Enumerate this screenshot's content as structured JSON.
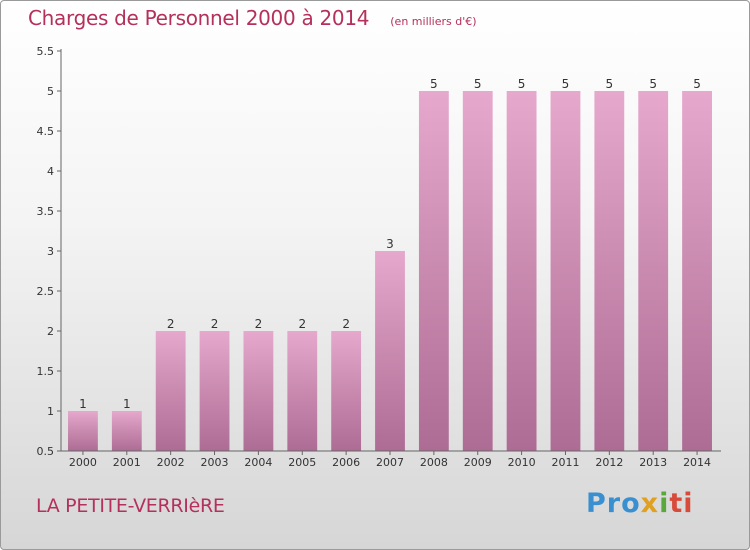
{
  "header": {
    "title": "Charges de Personnel 2000 à 2014",
    "subtitle": "(en milliers d'€)"
  },
  "footer": {
    "town": "LA PETITE-VERRIèRE",
    "brand": [
      "Pro",
      "x",
      "i",
      "ti"
    ]
  },
  "colors": {
    "title": "#b5305a",
    "bar_top": "#e6a8cc",
    "bar_bottom": "#ad6c94"
  },
  "chart_data": {
    "type": "bar",
    "title": "Charges de Personnel 2000 à 2014",
    "subtitle": "(en milliers d'€)",
    "categories": [
      "2000",
      "2001",
      "2002",
      "2003",
      "2004",
      "2005",
      "2006",
      "2007",
      "2008",
      "2009",
      "2010",
      "2011",
      "2012",
      "2013",
      "2014"
    ],
    "values": [
      1,
      1,
      2,
      2,
      2,
      2,
      2,
      3,
      5,
      5,
      5,
      5,
      5,
      5,
      5
    ],
    "data_labels": [
      "1",
      "1",
      "2",
      "2",
      "2",
      "2",
      "2",
      "3",
      "5",
      "5",
      "5",
      "5",
      "5",
      "5",
      "5"
    ],
    "ylim": [
      0.5,
      5.5
    ],
    "yticks": [
      "0.5",
      "1",
      "1.5",
      "2",
      "2.5",
      "3",
      "3.5",
      "4",
      "4.5",
      "5",
      "5.5"
    ],
    "grid": false,
    "legend": "none"
  }
}
